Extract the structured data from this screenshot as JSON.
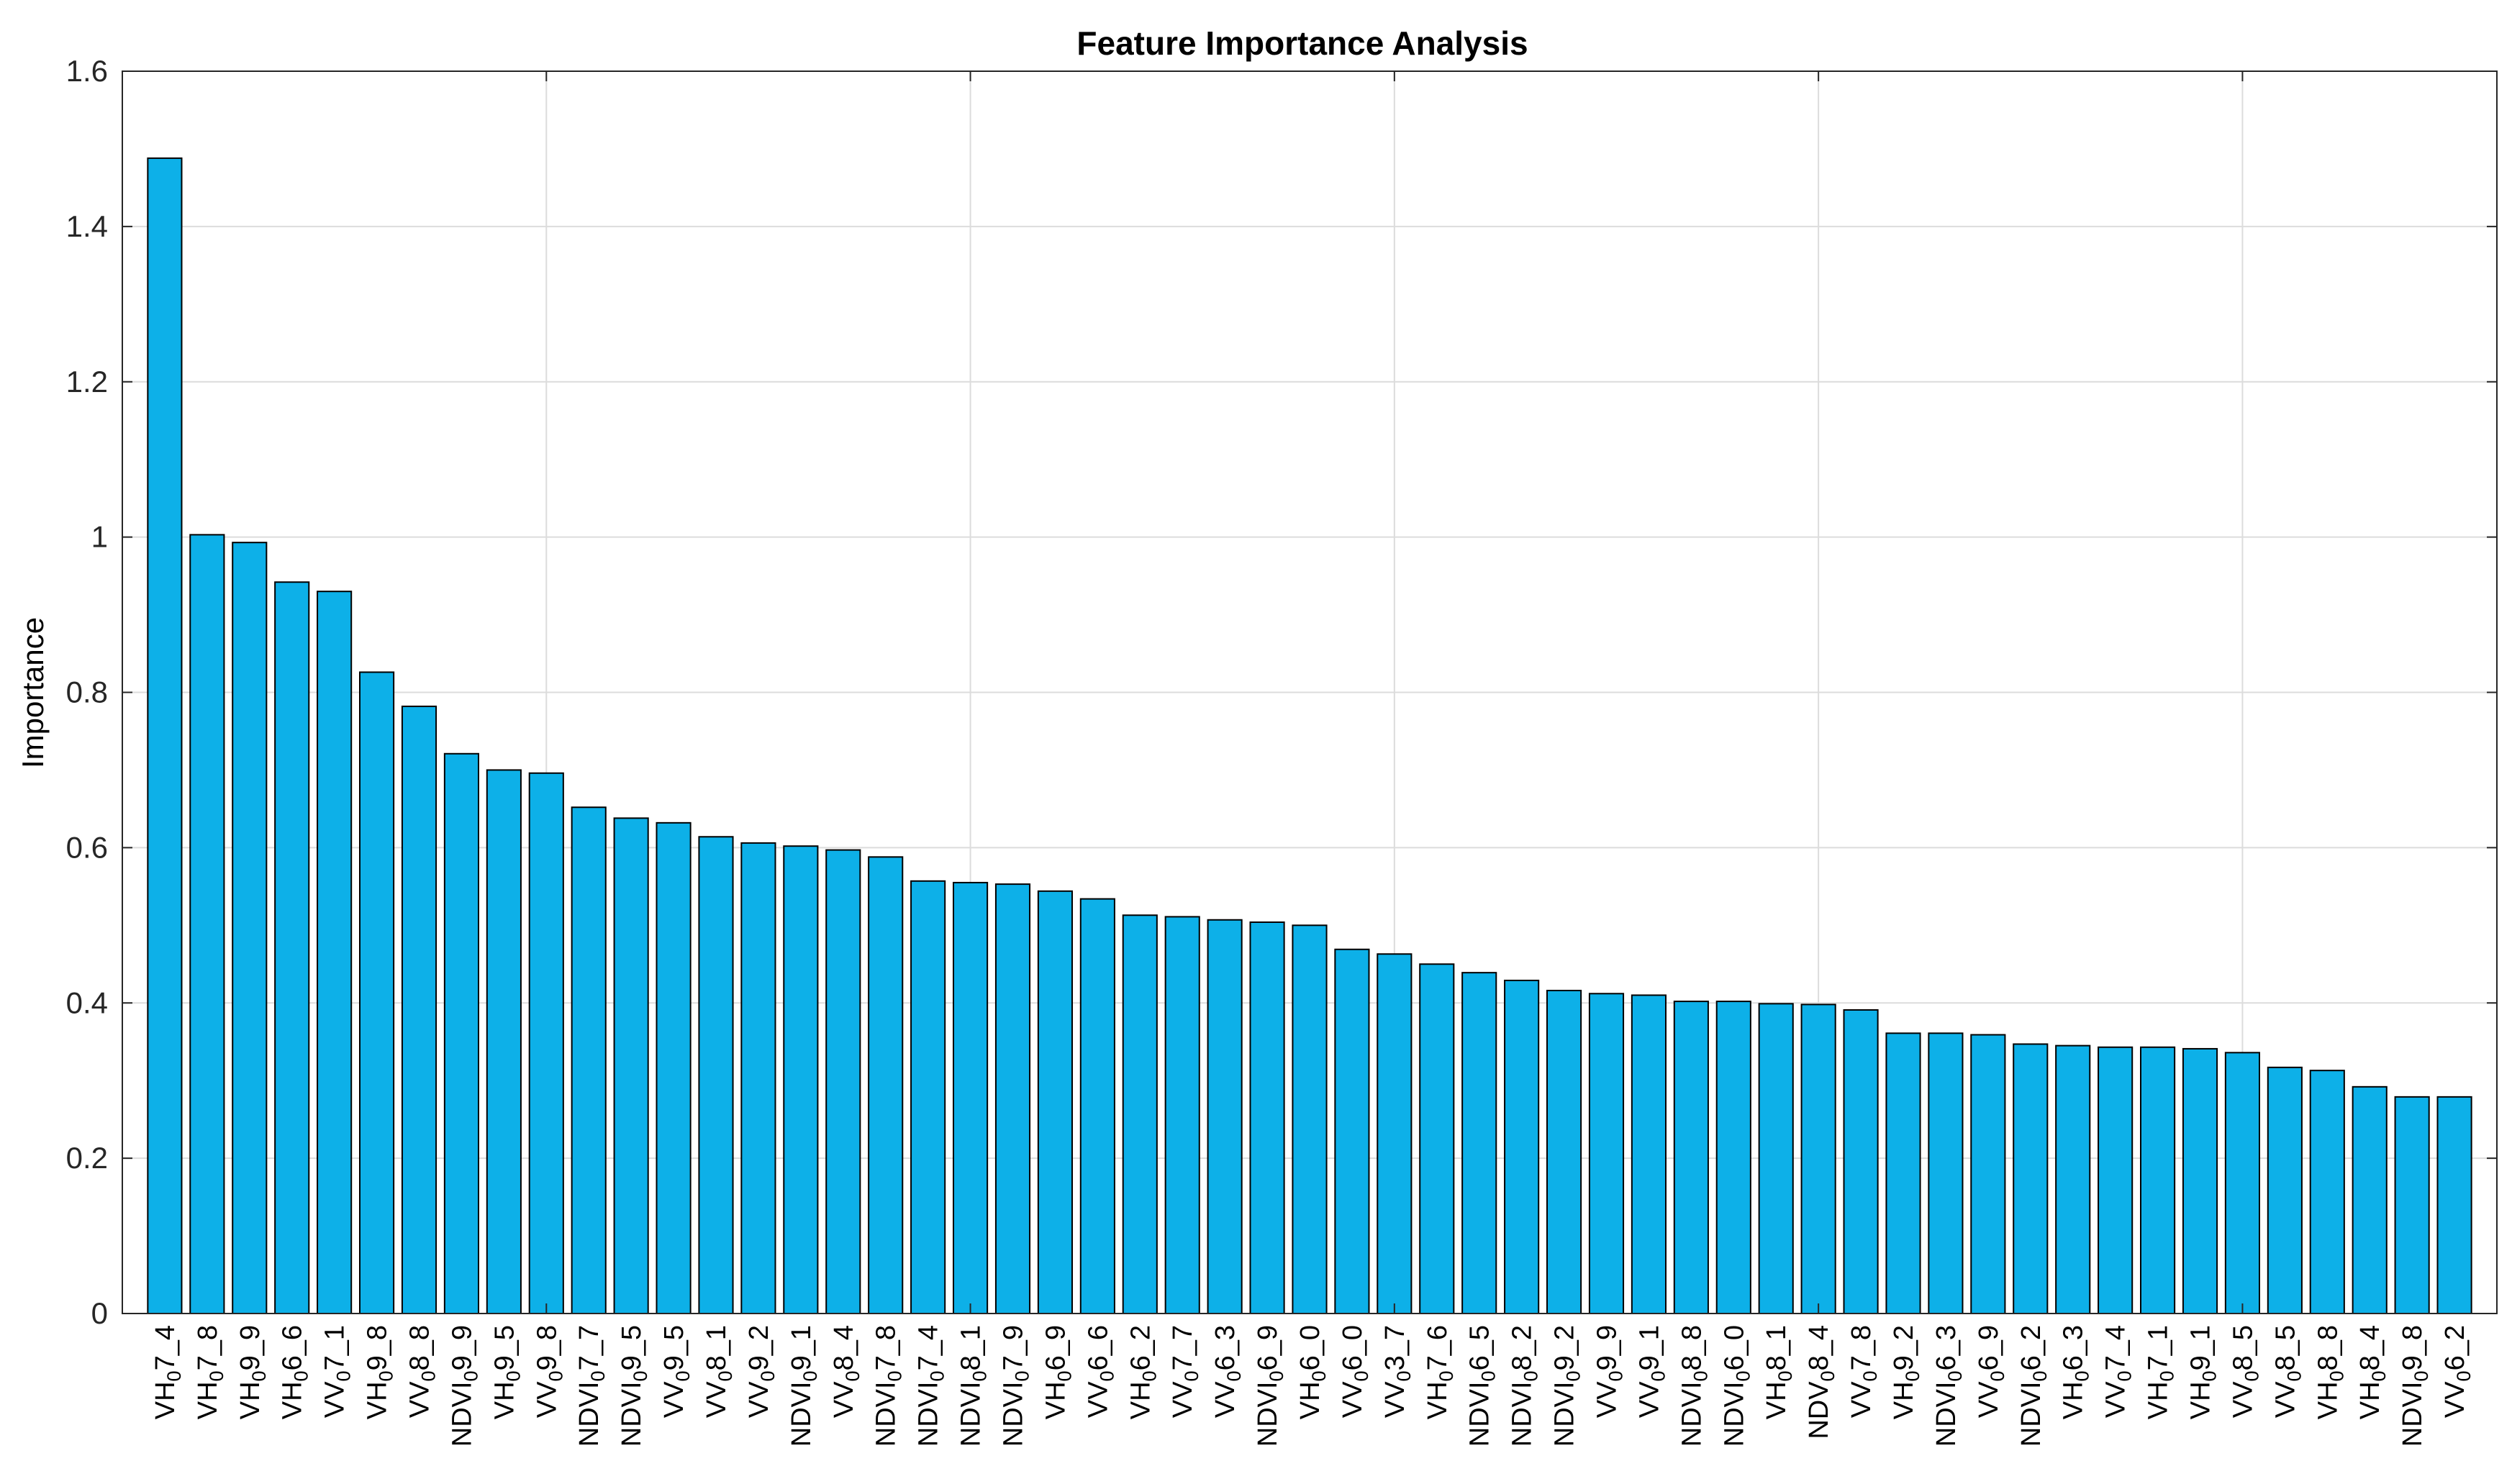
{
  "chart_data": {
    "type": "bar",
    "title": "Feature Importance Analysis",
    "xlabel": "",
    "ylabel": "Importance",
    "ylim": [
      0,
      1.6
    ],
    "yticks": [
      0,
      0.2,
      0.4,
      0.6,
      0.8,
      1,
      1.2,
      1.4,
      1.6
    ],
    "yticklabels": [
      "0",
      "0.2",
      "0.4",
      "0.6",
      "0.8",
      "1",
      "1.2",
      "1.4",
      "1.6"
    ],
    "grid": true,
    "bar_color": "#0DB0E8",
    "bar_edge_color": "#000000",
    "categories": [
      {
        "base": "VH",
        "sub": "0",
        "tail": "7_4"
      },
      {
        "base": "VH",
        "sub": "0",
        "tail": "7_8"
      },
      {
        "base": "VH",
        "sub": "0",
        "tail": "9_9"
      },
      {
        "base": "VH",
        "sub": "0",
        "tail": "6_6"
      },
      {
        "base": "VV",
        "sub": "0",
        "tail": "7_1"
      },
      {
        "base": "VH",
        "sub": "0",
        "tail": "9_8"
      },
      {
        "base": "VV",
        "sub": "0",
        "tail": "8_8"
      },
      {
        "base": "NDVI",
        "sub": "0",
        "tail": "9_9"
      },
      {
        "base": "VH",
        "sub": "0",
        "tail": "9_5"
      },
      {
        "base": "VV",
        "sub": "0",
        "tail": "9_8"
      },
      {
        "base": "NDVI",
        "sub": "0",
        "tail": "7_7"
      },
      {
        "base": "NDVI",
        "sub": "0",
        "tail": "9_5"
      },
      {
        "base": "VV",
        "sub": "0",
        "tail": "9_5"
      },
      {
        "base": "VV",
        "sub": "0",
        "tail": "8_1"
      },
      {
        "base": "VV",
        "sub": "0",
        "tail": "9_2"
      },
      {
        "base": "NDVI",
        "sub": "0",
        "tail": "9_1"
      },
      {
        "base": "VV",
        "sub": "0",
        "tail": "8_4"
      },
      {
        "base": "NDVI",
        "sub": "0",
        "tail": "7_8"
      },
      {
        "base": "NDVI",
        "sub": "0",
        "tail": "7_4"
      },
      {
        "base": "NDVI",
        "sub": "0",
        "tail": "8_1"
      },
      {
        "base": "NDVI",
        "sub": "0",
        "tail": "7_9"
      },
      {
        "base": "VH",
        "sub": "0",
        "tail": "6_9"
      },
      {
        "base": "VV",
        "sub": "0",
        "tail": "6_6"
      },
      {
        "base": "VH",
        "sub": "0",
        "tail": "6_2"
      },
      {
        "base": "VV",
        "sub": "0",
        "tail": "7_7"
      },
      {
        "base": "VV",
        "sub": "0",
        "tail": "6_3"
      },
      {
        "base": "NDVI",
        "sub": "0",
        "tail": "6_9"
      },
      {
        "base": "VH",
        "sub": "0",
        "tail": "6_0"
      },
      {
        "base": "VV",
        "sub": "0",
        "tail": "6_0"
      },
      {
        "base": "VV",
        "sub": "0",
        "tail": "3_7"
      },
      {
        "base": "VH",
        "sub": "0",
        "tail": "7_6"
      },
      {
        "base": "NDVI",
        "sub": "0",
        "tail": "6_5"
      },
      {
        "base": "NDVI",
        "sub": "0",
        "tail": "8_2"
      },
      {
        "base": "NDVI",
        "sub": "0",
        "tail": "9_2"
      },
      {
        "base": "VV",
        "sub": "0",
        "tail": "9_9"
      },
      {
        "base": "VV",
        "sub": "0",
        "tail": "9_1"
      },
      {
        "base": "NDVI",
        "sub": "0",
        "tail": "8_8"
      },
      {
        "base": "NDVI",
        "sub": "0",
        "tail": "6_0"
      },
      {
        "base": "VH",
        "sub": "0",
        "tail": "8_1"
      },
      {
        "base": "NDV",
        "sub": "0",
        "tail": "8_4"
      },
      {
        "base": "VV",
        "sub": "0",
        "tail": "7_8"
      },
      {
        "base": "VH",
        "sub": "0",
        "tail": "9_2"
      },
      {
        "base": "NDVI",
        "sub": "0",
        "tail": "6_3"
      },
      {
        "base": "VV",
        "sub": "0",
        "tail": "6_9"
      },
      {
        "base": "NDVI",
        "sub": "0",
        "tail": "6_2"
      },
      {
        "base": "VH",
        "sub": "0",
        "tail": "6_3"
      },
      {
        "base": "VV",
        "sub": "0",
        "tail": "7_4"
      },
      {
        "base": "VH",
        "sub": "0",
        "tail": "7_1"
      },
      {
        "base": "VH",
        "sub": "0",
        "tail": "9_1"
      },
      {
        "base": "VV",
        "sub": "0",
        "tail": "8_5"
      },
      {
        "base": "VV",
        "sub": "0",
        "tail": "8_5"
      },
      {
        "base": "VH",
        "sub": "0",
        "tail": "8_8"
      },
      {
        "base": "VH",
        "sub": "0",
        "tail": "8_4"
      },
      {
        "base": "NDVI",
        "sub": "0",
        "tail": "9_8"
      },
      {
        "base": "VV",
        "sub": "0",
        "tail": "6_2"
      }
    ],
    "values": [
      1.488,
      1.003,
      0.993,
      0.942,
      0.93,
      0.826,
      0.782,
      0.721,
      0.7,
      0.696,
      0.652,
      0.638,
      0.632,
      0.614,
      0.606,
      0.602,
      0.597,
      0.588,
      0.557,
      0.555,
      0.553,
      0.544,
      0.534,
      0.513,
      0.511,
      0.507,
      0.504,
      0.5,
      0.469,
      0.463,
      0.45,
      0.439,
      0.429,
      0.416,
      0.412,
      0.41,
      0.402,
      0.402,
      0.399,
      0.398,
      0.391,
      0.361,
      0.361,
      0.359,
      0.347,
      0.345,
      0.343,
      0.343,
      0.341,
      0.336,
      0.317,
      0.313,
      0.292,
      0.279,
      0.279
    ]
  }
}
